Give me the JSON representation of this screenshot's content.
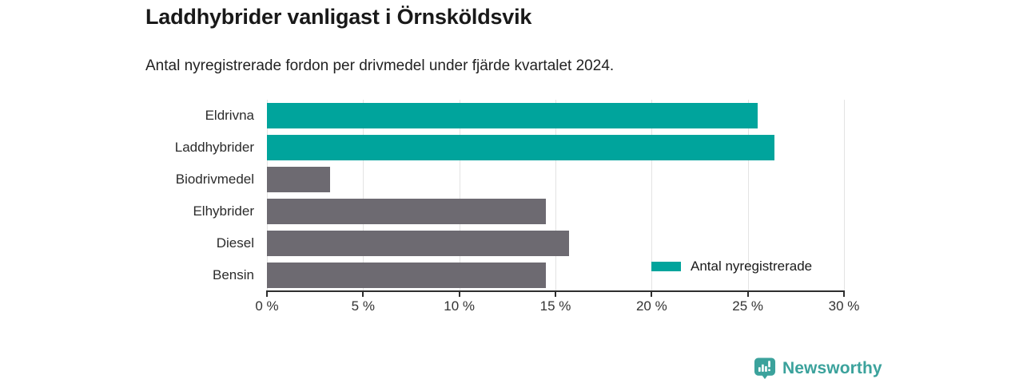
{
  "header": {
    "title": "Laddhybrider vanligast i Örnsköldsvik",
    "subtitle": "Antal nyregistrerade fordon per drivmedel under fjärde kvartalet 2024."
  },
  "chart_data": {
    "type": "bar",
    "orientation": "horizontal",
    "title": "Laddhybrider vanligast i Örnsköldsvik",
    "subtitle": "Antal nyregistrerade fordon per drivmedel under fjärde kvartalet 2024.",
    "series_name": "Antal nyregistrerade",
    "categories": [
      "Eldrivna",
      "Laddhybrider",
      "Biodrivmedel",
      "Elhybrider",
      "Diesel",
      "Bensin"
    ],
    "values": [
      25.5,
      26.4,
      3.3,
      14.5,
      15.7,
      14.5
    ],
    "unit": "%",
    "highlighted": [
      true,
      true,
      false,
      false,
      false,
      false
    ],
    "xlim": [
      0,
      30
    ],
    "xticks": [
      0,
      5,
      10,
      15,
      20,
      25,
      30
    ],
    "xtick_labels": [
      "0 %",
      "5 %",
      "10 %",
      "15 %",
      "20 %",
      "25 %",
      "30 %"
    ],
    "grid": true,
    "legend": {
      "label": "Antal nyregistrerade",
      "position": "inside bottom-right"
    },
    "colors": {
      "highlight": "#00a49c",
      "default": "#6d6a71",
      "gridline": "#e3e3e3",
      "axis": "#2e2e2e"
    }
  },
  "branding": {
    "logo_text": "Newsworthy",
    "logo_color": "#3ba29c",
    "icon": "newsworthy-chart-bubble-icon"
  }
}
